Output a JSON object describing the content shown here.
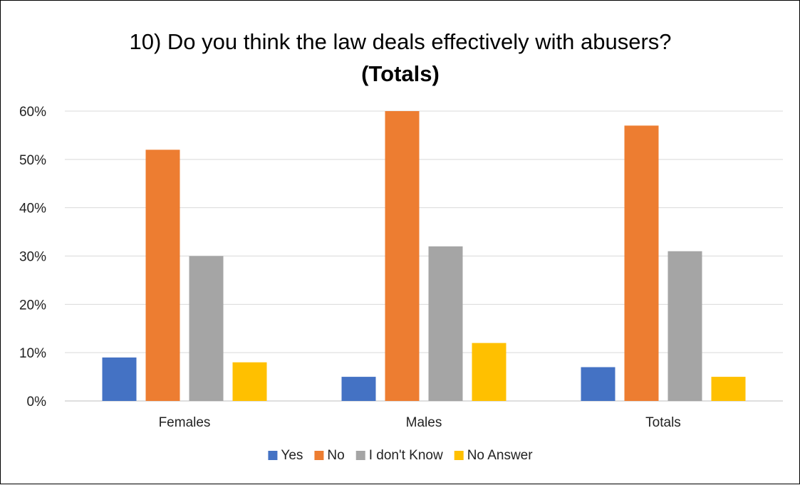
{
  "chart_data": {
    "type": "bar",
    "title": "10) Do you think the law deals effectively with abusers?",
    "subtitle": "(Totals)",
    "categories": [
      "Females",
      "Males",
      "Totals"
    ],
    "series": [
      {
        "name": "Yes",
        "values": [
          9,
          5,
          7
        ],
        "color": "#4472C4"
      },
      {
        "name": "No",
        "values": [
          52,
          60,
          57
        ],
        "color": "#ED7D31"
      },
      {
        "name": "I don't Know",
        "values": [
          30,
          32,
          31
        ],
        "color": "#A5A5A5"
      },
      {
        "name": "No Answer",
        "values": [
          8,
          12,
          5
        ],
        "color": "#FFC000"
      }
    ],
    "y_ticks": [
      "0%",
      "10%",
      "20%",
      "30%",
      "40%",
      "50%",
      "60%"
    ],
    "ylim": [
      0,
      60
    ],
    "y_unit": "%",
    "grid": true,
    "legend_position": "bottom",
    "xlabel": "",
    "ylabel": ""
  }
}
